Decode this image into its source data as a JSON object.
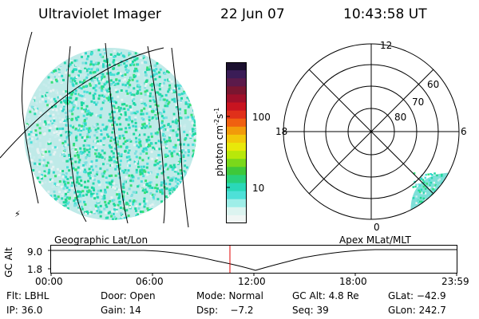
{
  "header": {
    "instrument": "Ultraviolet Imager",
    "date": "22 Jun 07",
    "time": "10:43:58 UT"
  },
  "colorbar": {
    "unit_label": "photon cm",
    "unit_sup1": "-2",
    "unit_mid": "s",
    "unit_sup2": "-1",
    "ticks": [
      "100",
      "10"
    ],
    "colors": [
      "#1a0f2e",
      "#3a1c56",
      "#5b1a4a",
      "#7a1630",
      "#a0102a",
      "#c81420",
      "#e0301a",
      "#f06010",
      "#f29a0a",
      "#f2c80a",
      "#e8e80a",
      "#b8e80a",
      "#7ad81a",
      "#3ec83a",
      "#28d07a",
      "#2ad8b8",
      "#4ee0d8",
      "#9eeee8",
      "#dcf4f0",
      "#f0f6f4"
    ]
  },
  "polar_plot": {
    "mlt_labels": {
      "top": "12",
      "left": "18",
      "right": "6",
      "bottom": "0"
    },
    "lat_labels": [
      "60",
      "70",
      "80"
    ]
  },
  "panel_labels": {
    "left": "Geographic Lat/Lon",
    "right": "Apex MLat/MLT"
  },
  "altitude_plot": {
    "axis_label": "GC Alt",
    "y_ticks": [
      "9.0",
      "1.8"
    ],
    "x_ticks": [
      "00:00",
      "06:00",
      "12:00",
      "18:00",
      "23:59"
    ],
    "marker_color": "#e00000"
  },
  "info": {
    "row1": {
      "flt": "Flt: LBHL",
      "door": "Door: Open",
      "mode": "Mode: Normal",
      "gcalt": "GC Alt: 4.8 Re",
      "glat": "GLat: −42.9"
    },
    "row2": {
      "ip": "IP: 36.0",
      "gain": "Gain: 14",
      "dsp": "Dsp:    −7.2",
      "seq": "Seq: 39",
      "glon": "GLon: 242.7"
    }
  },
  "image_colors": {
    "noise": [
      "#28d8b0",
      "#30d8c8",
      "#48e0d8",
      "#22d890",
      "#38e078",
      "#7ee0e0",
      "#c8ecec",
      "#e6f2f2",
      "#1ad8a0"
    ],
    "grid": "#000000"
  }
}
